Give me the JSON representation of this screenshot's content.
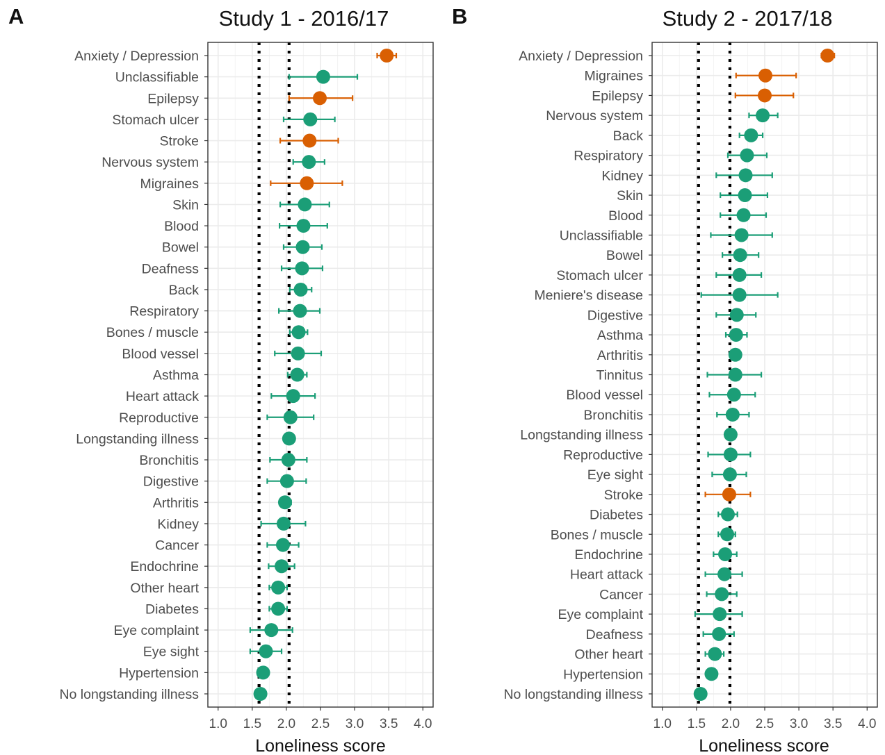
{
  "colors": {
    "highlight": "#d95f02",
    "default": "#1b9e77",
    "grid": "#ebebeb",
    "panel_border": "#333333",
    "reference_line": "#000000"
  },
  "chart_data": [
    {
      "type": "scatter",
      "panel_letter": "A",
      "title": "Study 1 - 2016/17",
      "xlabel": "Loneliness score",
      "ylabel": "",
      "xlim": [
        0.85,
        4.15
      ],
      "xticks": [
        1.0,
        1.5,
        2.0,
        2.5,
        3.0,
        3.5,
        4.0
      ],
      "xtick_labels": [
        "1.0",
        "1.5",
        "2.0",
        "2.5",
        "3.0",
        "3.5",
        "4.0"
      ],
      "grid": true,
      "reference_lines": [
        1.6,
        2.04
      ],
      "categories": [
        "Anxiety / Depression",
        "Unclassifiable",
        "Epilepsy",
        "Stomach ulcer",
        "Stroke",
        "Nervous system",
        "Migraines",
        "Skin",
        "Blood",
        "Bowel",
        "Deafness",
        "Back",
        "Respiratory",
        "Bones / muscle",
        "Blood vessel",
        "Asthma",
        "Heart attack",
        "Reproductive",
        "Longstanding illness",
        "Bronchitis",
        "Digestive",
        "Arthritis",
        "Kidney",
        "Cancer",
        "Endochrine",
        "Other heart",
        "Diabetes",
        "Eye complaint",
        "Eye sight",
        "Hypertension",
        "No longstanding illness"
      ],
      "values": [
        3.47,
        2.54,
        2.49,
        2.35,
        2.34,
        2.33,
        2.3,
        2.27,
        2.25,
        2.24,
        2.23,
        2.21,
        2.2,
        2.18,
        2.17,
        2.16,
        2.1,
        2.06,
        2.04,
        2.03,
        2.01,
        1.98,
        1.96,
        1.95,
        1.93,
        1.88,
        1.88,
        1.78,
        1.7,
        1.66,
        1.62
      ],
      "lower": [
        3.33,
        2.04,
        2.04,
        1.96,
        1.91,
        2.1,
        1.77,
        1.91,
        1.9,
        1.96,
        1.93,
        2.05,
        1.89,
        2.05,
        1.83,
        2.02,
        1.78,
        1.72,
        2.0,
        1.76,
        1.72,
        1.9,
        1.63,
        1.72,
        1.74,
        1.75,
        1.75,
        1.47,
        1.47,
        1.58,
        1.58
      ],
      "upper": [
        3.61,
        3.04,
        2.97,
        2.71,
        2.76,
        2.56,
        2.82,
        2.63,
        2.6,
        2.52,
        2.53,
        2.37,
        2.49,
        2.31,
        2.51,
        2.3,
        2.42,
        2.4,
        2.08,
        2.3,
        2.29,
        2.07,
        2.28,
        2.18,
        2.12,
        2.01,
        2.01,
        2.09,
        1.93,
        1.74,
        1.66
      ],
      "highlighted": [
        "Anxiety / Depression",
        "Epilepsy",
        "Stroke",
        "Migraines"
      ]
    },
    {
      "type": "scatter",
      "panel_letter": "B",
      "title": "Study 2 - 2017/18",
      "xlabel": "Loneliness score",
      "ylabel": "",
      "xlim": [
        0.85,
        4.15
      ],
      "xticks": [
        1.0,
        1.5,
        2.0,
        2.5,
        3.0,
        3.5,
        4.0
      ],
      "xtick_labels": [
        "1.0",
        "1.5",
        "2.0",
        "2.5",
        "3.0",
        "3.5",
        "4.0"
      ],
      "grid": true,
      "reference_lines": [
        1.53,
        1.99
      ],
      "categories": [
        "Anxiety / Depression",
        "Migraines",
        "Epilepsy",
        "Nervous system",
        "Back",
        "Respiratory",
        "Kidney",
        "Skin",
        "Blood",
        "Unclassifiable",
        "Bowel",
        "Stomach ulcer",
        "Meniere's disease",
        "Digestive",
        "Asthma",
        "Arthritis",
        "Tinnitus",
        "Blood vessel",
        "Bronchitis",
        "Longstanding illness",
        "Reproductive",
        "Eye sight",
        "Stroke",
        "Diabetes",
        "Bones / muscle",
        "Endochrine",
        "Heart attack",
        "Cancer",
        "Eye complaint",
        "Deafness",
        "Other heart",
        "Hypertension",
        "No longstanding illness"
      ],
      "values": [
        3.42,
        2.51,
        2.5,
        2.47,
        2.3,
        2.24,
        2.22,
        2.21,
        2.19,
        2.16,
        2.14,
        2.13,
        2.13,
        2.09,
        2.08,
        2.07,
        2.07,
        2.05,
        2.03,
        2.0,
        2.0,
        1.99,
        1.98,
        1.96,
        1.95,
        1.92,
        1.91,
        1.87,
        1.84,
        1.83,
        1.77,
        1.72,
        1.56
      ],
      "lower": [
        3.33,
        2.08,
        2.07,
        2.27,
        2.13,
        1.96,
        1.79,
        1.85,
        1.85,
        1.71,
        1.88,
        1.79,
        1.57,
        1.79,
        1.93,
        2.02,
        1.66,
        1.69,
        1.8,
        1.96,
        1.67,
        1.73,
        1.63,
        1.82,
        1.82,
        1.75,
        1.63,
        1.65,
        1.48,
        1.6,
        1.63,
        1.66,
        1.52
      ],
      "upper": [
        3.52,
        2.96,
        2.92,
        2.69,
        2.47,
        2.53,
        2.61,
        2.54,
        2.52,
        2.61,
        2.41,
        2.45,
        2.69,
        2.37,
        2.24,
        2.13,
        2.45,
        2.36,
        2.27,
        2.04,
        2.29,
        2.23,
        2.29,
        2.1,
        2.07,
        2.09,
        2.17,
        2.09,
        2.17,
        2.05,
        1.9,
        1.77,
        1.59
      ],
      "highlighted": [
        "Anxiety / Depression",
        "Migraines",
        "Epilepsy",
        "Stroke"
      ]
    }
  ]
}
